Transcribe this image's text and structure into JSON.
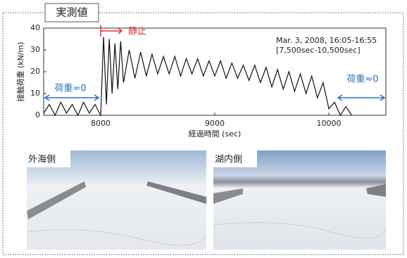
{
  "frame_label": "実測値",
  "chart_data": {
    "type": "line",
    "ylabel": "接触荷重 (kN/m)",
    "xlabel": "経過時間 (sec)",
    "xlim": [
      7500,
      10500
    ],
    "xticks": [
      8000,
      9000,
      10000
    ],
    "ylim": [
      0,
      40
    ],
    "yticks": [
      0,
      10,
      20,
      30,
      40
    ],
    "annotations": {
      "stop": "静止",
      "date": "Mar. 3, 2008, 16:05-16:55",
      "range": "[7,500sec-10,500sec]",
      "zero_left": "荷重≈0",
      "zero_right": "荷重≈0"
    },
    "series": [
      {
        "color": "#111111",
        "x": [
          7500,
          7550,
          7600,
          7650,
          7700,
          7750,
          7800,
          7850,
          7900,
          7950,
          8000,
          8025,
          8050,
          8075,
          8100,
          8125,
          8150,
          8175,
          8200,
          8250,
          8300,
          8350,
          8400,
          8450,
          8500,
          8550,
          8600,
          8650,
          8700,
          8750,
          8800,
          8850,
          8900,
          8950,
          9000,
          9050,
          9100,
          9150,
          9200,
          9250,
          9300,
          9350,
          9400,
          9450,
          9500,
          9550,
          9600,
          9650,
          9700,
          9750,
          9800,
          9850,
          9900,
          9950,
          10000,
          10050,
          10100,
          10150,
          10200
        ],
        "values": [
          1,
          5,
          0,
          6,
          1,
          5,
          0,
          6,
          1,
          5,
          0,
          36,
          5,
          35,
          10,
          33,
          12,
          34,
          15,
          30,
          17,
          29,
          18,
          28,
          19,
          27,
          19,
          27,
          18,
          26,
          19,
          26,
          18,
          25,
          18,
          25,
          17,
          24,
          17,
          23,
          16,
          23,
          15,
          22,
          13,
          21,
          12,
          20,
          11,
          19,
          10,
          18,
          8,
          15,
          3,
          6,
          0,
          4,
          0
        ]
      }
    ]
  },
  "photo_labels": [
    "外海側",
    "湖内側"
  ]
}
